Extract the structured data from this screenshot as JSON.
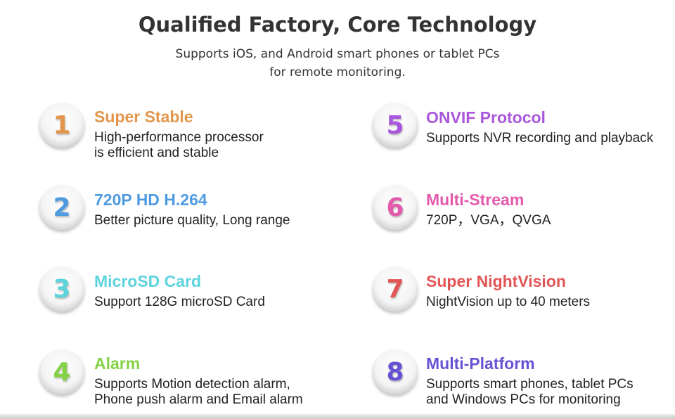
{
  "header": {
    "title": "Qualified Factory, Core Technology",
    "subtitle": [
      "Supports iOS, and Android smart phones or tablet PCs",
      "for remote monitoring."
    ]
  },
  "features": [
    {
      "number": "1",
      "title": "Super Stable",
      "color": "#e3964b",
      "description": [
        "High-performance processor",
        "is efficient and stable"
      ]
    },
    {
      "number": "2",
      "title": "720P HD H.264",
      "color": "#4f9be0",
      "description": [
        "Better picture quality, Long range"
      ]
    },
    {
      "number": "3",
      "title": "MicroSD Card",
      "color": "#5dd3dc",
      "description": [
        "Support 128G microSD Card"
      ]
    },
    {
      "number": "4",
      "title": "Alarm",
      "color": "#84d245",
      "description": [
        "Supports Motion detection alarm,",
        "Phone push alarm and Email alarm"
      ]
    },
    {
      "number": "5",
      "title": "ONVIF Protocol",
      "color": "#a957dc",
      "description": [
        "Supports NVR recording and playback"
      ]
    },
    {
      "number": "6",
      "title": "Multi-Stream",
      "color": "#e35aac",
      "description": [
        "720P，VGA，QVGA"
      ]
    },
    {
      "number": "7",
      "title": "Super NightVision",
      "color": "#e25555",
      "description": [
        "NightVision up to 40 meters"
      ]
    },
    {
      "number": "8",
      "title": "Multi-Platform",
      "color": "#6553d4",
      "description": [
        "Supports smart phones, tablet PCs",
        "and Windows PCs for monitoring"
      ]
    }
  ]
}
